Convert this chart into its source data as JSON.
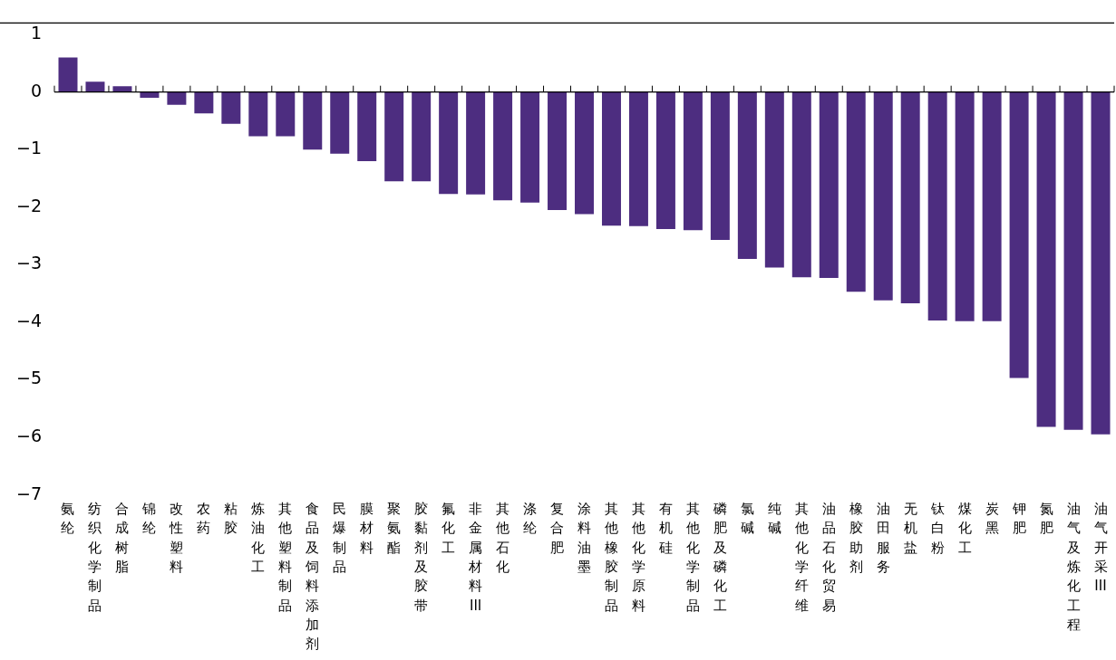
{
  "chart_data": {
    "type": "bar",
    "categories": [
      "氨纶",
      "纺织化学制品",
      "合成树脂",
      "锦纶",
      "改性塑料",
      "农药",
      "粘胶",
      "炼油化工",
      "其他塑料制品",
      "食品及饲料添加剂",
      "民爆制品",
      "膜材料",
      "聚氨酯",
      "胶黏剂及胶带",
      "氟化工",
      "非金属材料III",
      "其他石化",
      "涤纶",
      "复合肥",
      "涂料油墨",
      "其他橡胶制品",
      "其他化学原料",
      "有机硅",
      "其他化学制品",
      "磷肥及磷化工",
      "氯碱",
      "纯碱",
      "其他化学纤维",
      "油品石化贸易",
      "橡胶助剂",
      "油田服务",
      "无机盐",
      "钛白粉",
      "煤化工",
      "炭黑",
      "钾肥",
      "氮肥",
      "油气及炼化工程",
      "油气开采III"
    ],
    "values": [
      0.6,
      0.18,
      0.1,
      -0.1,
      -0.22,
      -0.37,
      -0.55,
      -0.77,
      -0.77,
      -1.0,
      -1.07,
      -1.2,
      -1.55,
      -1.55,
      -1.77,
      -1.78,
      -1.88,
      -1.92,
      -2.05,
      -2.12,
      -2.32,
      -2.33,
      -2.38,
      -2.4,
      -2.57,
      -2.9,
      -3.05,
      -3.22,
      -3.23,
      -3.47,
      -3.62,
      -3.67,
      -3.97,
      -3.98,
      -3.98,
      -4.97,
      -5.82,
      -5.87,
      -5.95
    ],
    "color": "#4d2d80",
    "ylim": [
      -7,
      1.2
    ],
    "yticks": [
      {
        "value": 1,
        "label": "1"
      },
      {
        "value": 0,
        "label": "0"
      },
      {
        "value": -1,
        "label": "−1"
      },
      {
        "value": -2,
        "label": "−2"
      },
      {
        "value": -3,
        "label": "−3"
      },
      {
        "value": -4,
        "label": "−4"
      },
      {
        "value": -5,
        "label": "−5"
      },
      {
        "value": -6,
        "label": "−6"
      },
      {
        "value": -7,
        "label": "−7"
      }
    ],
    "legend": false
  }
}
